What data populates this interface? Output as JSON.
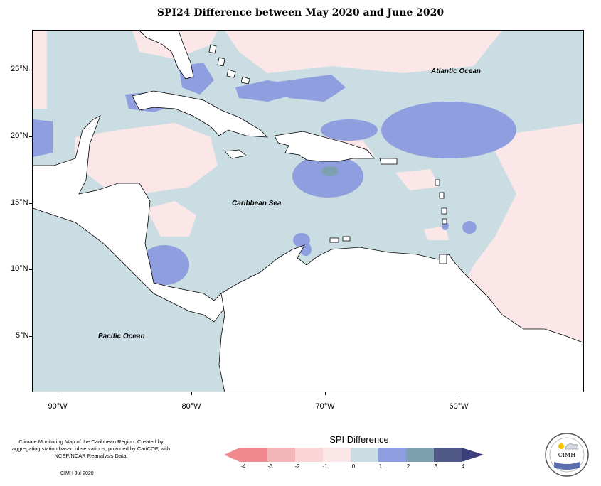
{
  "title": "SPI24 Difference between May 2020 and June 2020",
  "map": {
    "labels": {
      "atlantic": "Atlantic Ocean",
      "caribbean": "Caribbean Sea",
      "pacific": "Pacific Ocean"
    },
    "lat_ticks": [
      "25°N",
      "20°N",
      "15°N",
      "10°N",
      "5°N"
    ],
    "lon_ticks": [
      "90°W",
      "80°W",
      "70°W",
      "60°W"
    ],
    "colors": {
      "neg4": "#f08a8e",
      "neg3": "#f2b6b8",
      "neg2": "#f9d5d8",
      "neg1": "#fbe7e8",
      "pos0": "#c9dde3",
      "pos1": "#8e9ede",
      "pos2": "#7d9fb0",
      "pos3": "#4f5a86",
      "land": "#ffffff"
    }
  },
  "legend": {
    "title": "SPI Difference",
    "ticks": [
      "-4",
      "-3",
      "-2",
      "-1",
      "0",
      "1",
      "2",
      "3",
      "4"
    ]
  },
  "credits": {
    "text": "Climate Monitoring Map of the Caribbean Region. Created by aggregating station based observations, provided by CariCOF, with NCEP/NCAR Reanalysis Data.",
    "date": "CIMH Jul-2020"
  },
  "logo": {
    "name": "CIMH"
  }
}
